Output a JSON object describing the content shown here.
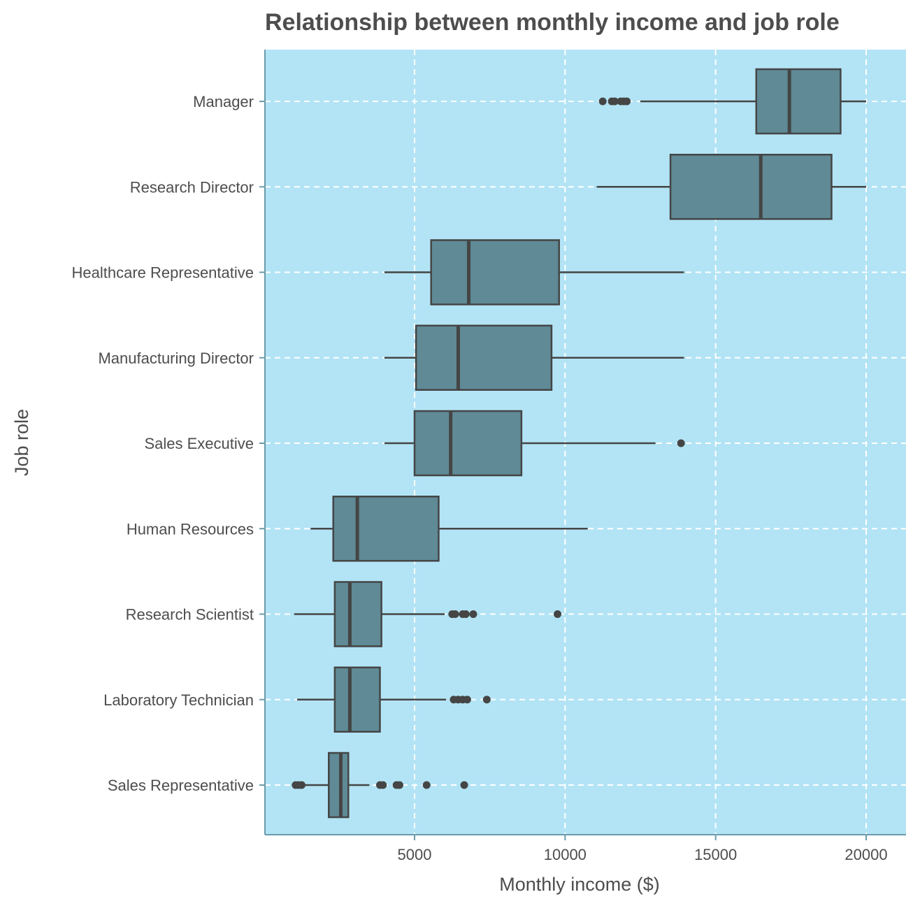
{
  "chart_data": {
    "type": "boxplot",
    "title": "Relationship between monthly income and job role",
    "xlabel": "Monthly income ($)",
    "ylabel": "Job role",
    "xlim": [
      0,
      21000
    ],
    "x_ticks": [
      5000,
      10000,
      15000,
      20000
    ],
    "grid": true,
    "orientation": "horizontal",
    "colors": {
      "panel": "#b3e4f5",
      "box_fill": "#5f8a96",
      "box_stroke": "#454545",
      "grid": "#ffffff",
      "axis": "#6a9bab",
      "text": "#4d4d4d"
    },
    "categories": [
      "Manager",
      "Research Director",
      "Healthcare Representative",
      "Manufacturing Director",
      "Sales Executive",
      "Human Resources",
      "Research Scientist",
      "Laboratory Technician",
      "Sales Representative"
    ],
    "boxes": [
      {
        "label": "Manager",
        "whisker_low": 12500,
        "q1": 16350,
        "median": 17450,
        "q3": 19150,
        "whisker_high": 20000,
        "outliers": [
          11250,
          11550,
          11650,
          11850,
          11950,
          12050
        ]
      },
      {
        "label": "Research Director",
        "whisker_low": 11050,
        "q1": 13500,
        "median": 16500,
        "q3": 18850,
        "whisker_high": 20000,
        "outliers": []
      },
      {
        "label": "Healthcare Representative",
        "whisker_low": 4000,
        "q1": 5550,
        "median": 6800,
        "q3": 9800,
        "whisker_high": 13950,
        "outliers": []
      },
      {
        "label": "Manufacturing Director",
        "whisker_low": 4000,
        "q1": 5050,
        "median": 6450,
        "q3": 9550,
        "whisker_high": 13950,
        "outliers": []
      },
      {
        "label": "Sales Executive",
        "whisker_low": 4000,
        "q1": 5000,
        "median": 6200,
        "q3": 8550,
        "whisker_high": 13000,
        "outliers": [
          13850
        ]
      },
      {
        "label": "Human Resources",
        "whisker_low": 1550,
        "q1": 2300,
        "median": 3100,
        "q3": 5800,
        "whisker_high": 10750,
        "outliers": []
      },
      {
        "label": "Research Scientist",
        "whisker_low": 1000,
        "q1": 2350,
        "median": 2850,
        "q3": 3900,
        "whisker_high": 6000,
        "outliers": [
          6250,
          6350,
          6600,
          6700,
          6950,
          9750
        ]
      },
      {
        "label": "Laboratory Technician",
        "whisker_low": 1100,
        "q1": 2350,
        "median": 2850,
        "q3": 3850,
        "whisker_high": 6050,
        "outliers": [
          6300,
          6450,
          6600,
          6750,
          7400
        ]
      },
      {
        "label": "Sales Representative",
        "whisker_low": 1200,
        "q1": 2150,
        "median": 2550,
        "q3": 2800,
        "whisker_high": 3500,
        "outliers": [
          1050,
          1150,
          1250,
          3850,
          3950,
          4400,
          4500,
          5400,
          6650
        ]
      }
    ]
  }
}
